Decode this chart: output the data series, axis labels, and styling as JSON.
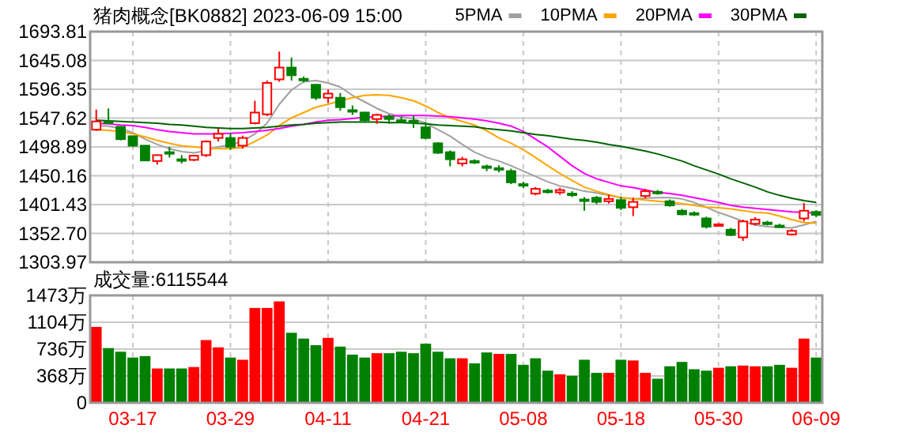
{
  "chart_data": [
    {
      "type": "candlestick",
      "title": "猪肉概念[BK0882] 2023-06-09 15:00",
      "categories": [
        null,
        null,
        null,
        null,
        null,
        null,
        null,
        null,
        null,
        null,
        null,
        null,
        null,
        null,
        null,
        null,
        null,
        null,
        null,
        null,
        null,
        null,
        null,
        null,
        null,
        null,
        null,
        null,
        null,
        null,
        null,
        null,
        null,
        null,
        null,
        null,
        null,
        null,
        null,
        null,
        null,
        null,
        null,
        null,
        null,
        null,
        null,
        null,
        null,
        null,
        null,
        null,
        null,
        null,
        null,
        null,
        null,
        null,
        null,
        null
      ],
      "ohlc": [
        [
          1528,
          1562,
          1526,
          1542
        ],
        [
          1542,
          1564,
          1538,
          1540
        ],
        [
          1533,
          1533,
          1510,
          1512
        ],
        [
          1517,
          1517,
          1499,
          1501
        ],
        [
          1501,
          1501,
          1475,
          1476
        ],
        [
          1475,
          1486,
          1469,
          1485
        ],
        [
          1490,
          1499,
          1481,
          1489
        ],
        [
          1478,
          1485,
          1471,
          1477
        ],
        [
          1477,
          1485,
          1475,
          1484
        ],
        [
          1485,
          1510,
          1482,
          1508
        ],
        [
          1514,
          1530,
          1508,
          1521
        ],
        [
          1514,
          1523,
          1494,
          1499
        ],
        [
          1501,
          1518,
          1496,
          1514
        ],
        [
          1539,
          1577,
          1537,
          1557
        ],
        [
          1554,
          1611,
          1551,
          1607
        ],
        [
          1613,
          1660,
          1609,
          1633
        ],
        [
          1633,
          1650,
          1611,
          1620
        ],
        [
          1614,
          1618,
          1608,
          1613
        ],
        [
          1604,
          1605,
          1578,
          1582
        ],
        [
          1582,
          1596,
          1573,
          1589
        ],
        [
          1582,
          1590,
          1560,
          1566
        ],
        [
          1561,
          1569,
          1553,
          1560
        ],
        [
          1557,
          1558,
          1542,
          1544
        ],
        [
          1546,
          1555,
          1538,
          1553
        ],
        [
          1550,
          1554,
          1538,
          1546
        ],
        [
          1544,
          1550,
          1540,
          1543
        ],
        [
          1543,
          1552,
          1531,
          1542
        ],
        [
          1532,
          1541,
          1512,
          1514
        ],
        [
          1505,
          1507,
          1487,
          1489
        ],
        [
          1490,
          1493,
          1466,
          1478
        ],
        [
          1471,
          1482,
          1466,
          1478
        ],
        [
          1475,
          1478,
          1470,
          1474
        ],
        [
          1466,
          1469,
          1458,
          1465
        ],
        [
          1463,
          1468,
          1456,
          1462
        ],
        [
          1458,
          1462,
          1436,
          1439
        ],
        [
          1436,
          1440,
          1429,
          1435
        ],
        [
          1420,
          1431,
          1417,
          1428
        ],
        [
          1425,
          1428,
          1420,
          1424
        ],
        [
          1422,
          1430,
          1418,
          1426
        ],
        [
          1420,
          1424,
          1414,
          1419
        ],
        [
          1410,
          1414,
          1391,
          1409
        ],
        [
          1413,
          1416,
          1402,
          1406
        ],
        [
          1407,
          1418,
          1403,
          1411
        ],
        [
          1409,
          1414,
          1392,
          1396
        ],
        [
          1397,
          1413,
          1382,
          1406
        ],
        [
          1416,
          1428,
          1412,
          1424
        ],
        [
          1423,
          1426,
          1418,
          1422
        ],
        [
          1407,
          1410,
          1398,
          1400
        ],
        [
          1391,
          1394,
          1383,
          1385
        ],
        [
          1387,
          1390,
          1382,
          1386
        ],
        [
          1378,
          1381,
          1361,
          1364
        ],
        [
          1366,
          1370,
          1364,
          1368
        ],
        [
          1359,
          1362,
          1348,
          1350
        ],
        [
          1346,
          1376,
          1340,
          1373
        ],
        [
          1369,
          1380,
          1366,
          1376
        ],
        [
          1371,
          1374,
          1366,
          1370
        ],
        [
          1366,
          1369,
          1362,
          1365
        ],
        [
          1351,
          1360,
          1349,
          1357
        ],
        [
          1378,
          1404,
          1373,
          1391
        ],
        [
          1389,
          1392,
          1380,
          1384
        ]
      ],
      "series": [
        {
          "type": "line",
          "name": "5PMA",
          "color": "#a0a0a0",
          "values": [
            1535,
            1534,
            1530,
            1523,
            1512,
            1503,
            1496,
            1491,
            1489,
            1492,
            1499,
            1503,
            1508,
            1521,
            1539,
            1571,
            1595,
            1609,
            1611,
            1607,
            1600,
            1586,
            1575,
            1564,
            1555,
            1550,
            1546,
            1539,
            1528,
            1517,
            1503,
            1490,
            1481,
            1475,
            1467,
            1458,
            1449,
            1440,
            1433,
            1429,
            1424,
            1421,
            1417,
            1413,
            1411,
            1412,
            1413,
            1413,
            1411,
            1405,
            1397,
            1388,
            1381,
            1373,
            1367,
            1364,
            1363,
            1362,
            1367,
            1373
          ]
        },
        {
          "type": "line",
          "name": "10PMA",
          "color": "#ffa500",
          "values": [
            1528,
            1527,
            1525,
            1521,
            1516,
            1510,
            1505,
            1501,
            1499,
            1497,
            1496,
            1496,
            1498,
            1508,
            1519,
            1535,
            1548,
            1557,
            1566,
            1571,
            1577,
            1582,
            1586,
            1587,
            1586,
            1582,
            1577,
            1568,
            1557,
            1548,
            1542,
            1536,
            1526,
            1514,
            1505,
            1494,
            1481,
            1467,
            1454,
            1442,
            1431,
            1424,
            1418,
            1413,
            1411,
            1409,
            1407,
            1405,
            1403,
            1400,
            1397,
            1396,
            1394,
            1391,
            1388,
            1387,
            1382,
            1376,
            1371,
            1370
          ]
        },
        {
          "type": "line",
          "name": "20PMA",
          "color": "#ff00ff",
          "values": [
            1539,
            1538,
            1536,
            1535,
            1532,
            1528,
            1525,
            1523,
            1521,
            1521,
            1521,
            1522,
            1523,
            1525,
            1527,
            1530,
            1534,
            1537,
            1541,
            1544,
            1545,
            1547,
            1549,
            1550,
            1551,
            1552,
            1552,
            1552,
            1551,
            1550,
            1548,
            1546,
            1543,
            1539,
            1534,
            1525,
            1512,
            1499,
            1483,
            1467,
            1454,
            1445,
            1439,
            1433,
            1430,
            1426,
            1422,
            1420,
            1417,
            1413,
            1409,
            1405,
            1400,
            1397,
            1395,
            1393,
            1391,
            1389,
            1388,
            1387
          ]
        },
        {
          "type": "line",
          "name": "30PMA",
          "color": "#006400",
          "values": [
            1544,
            1543,
            1542,
            1541,
            1540,
            1539,
            1537,
            1536,
            1534,
            1532,
            1531,
            1530,
            1530,
            1531,
            1532,
            1534,
            1536,
            1537,
            1539,
            1540,
            1541,
            1541,
            1541,
            1541,
            1540,
            1540,
            1539,
            1538,
            1536,
            1535,
            1534,
            1533,
            1530,
            1528,
            1526,
            1523,
            1520,
            1518,
            1515,
            1512,
            1510,
            1507,
            1503,
            1500,
            1496,
            1492,
            1487,
            1481,
            1475,
            1467,
            1460,
            1453,
            1445,
            1438,
            1431,
            1423,
            1417,
            1412,
            1408,
            1405
          ]
        }
      ],
      "ylim": [
        1303.97,
        1693.81
      ],
      "yticks": [
        1303.97,
        {
          "value": 1352.7,
          "label": "1352.70"
        },
        1401.43,
        {
          "value": 1450.16,
          "label": "1450.16"
        },
        1498.89,
        1547.62,
        1596.35,
        1645.08,
        1693.81
      ],
      "grid": true,
      "legend": "top right",
      "tick_labels": "y"
    },
    {
      "type": "bar",
      "title": "成交量:6115544",
      "categories": [
        null,
        null,
        null,
        "03-17",
        null,
        null,
        null,
        null,
        null,
        null,
        null,
        "03-29",
        null,
        null,
        null,
        null,
        null,
        null,
        null,
        "04-11",
        null,
        null,
        null,
        null,
        null,
        null,
        null,
        "04-21",
        null,
        null,
        null,
        null,
        null,
        null,
        null,
        "05-08",
        null,
        null,
        null,
        null,
        null,
        null,
        null,
        "05-18",
        null,
        null,
        null,
        null,
        null,
        null,
        null,
        "05-30",
        null,
        null,
        null,
        null,
        null,
        null,
        null,
        "06-09"
      ],
      "values": [
        1030,
        740,
        690,
        610,
        630,
        460,
        460,
        460,
        480,
        850,
        750,
        610,
        580,
        1290,
        1290,
        1380,
        950,
        870,
        780,
        880,
        760,
        650,
        610,
        670,
        670,
        690,
        670,
        800,
        690,
        600,
        600,
        530,
        680,
        660,
        660,
        510,
        600,
        430,
        380,
        360,
        580,
        400,
        400,
        580,
        570,
        400,
        320,
        490,
        550,
        450,
        430,
        470,
        490,
        500,
        490,
        490,
        510,
        470,
        870,
        610
      ],
      "colors": [
        "#ff0000",
        "#008000",
        "#008000",
        "#008000",
        "#008000",
        "#ff0000",
        "#008000",
        "#008000",
        "#ff0000",
        "#ff0000",
        "#ff0000",
        "#008000",
        "#ff0000",
        "#ff0000",
        "#ff0000",
        "#ff0000",
        "#008000",
        "#008000",
        "#008000",
        "#ff0000",
        "#008000",
        "#008000",
        "#008000",
        "#ff0000",
        "#008000",
        "#008000",
        "#008000",
        "#008000",
        "#008000",
        "#008000",
        "#ff0000",
        "#008000",
        "#008000",
        "#ff0000",
        "#008000",
        "#008000",
        "#008000",
        "#008000",
        "#ff0000",
        "#008000",
        "#008000",
        "#008000",
        "#ff0000",
        "#008000",
        "#ff0000",
        "#ff0000",
        "#008000",
        "#008000",
        "#008000",
        "#008000",
        "#008000",
        "#ff0000",
        "#008000",
        "#ff0000",
        "#ff0000",
        "#008000",
        "#008000",
        "#ff0000",
        "#ff0000",
        "#008000"
      ],
      "ylim": [
        0,
        1473
      ],
      "yticks": [
        0,
        {
          "value": 368,
          "label": "368万"
        },
        {
          "value": 736,
          "label": "736万"
        },
        {
          "value": 1104,
          "label": "1104万"
        },
        {
          "value": 1473,
          "label": "1473万"
        }
      ],
      "grid": true
    }
  ]
}
